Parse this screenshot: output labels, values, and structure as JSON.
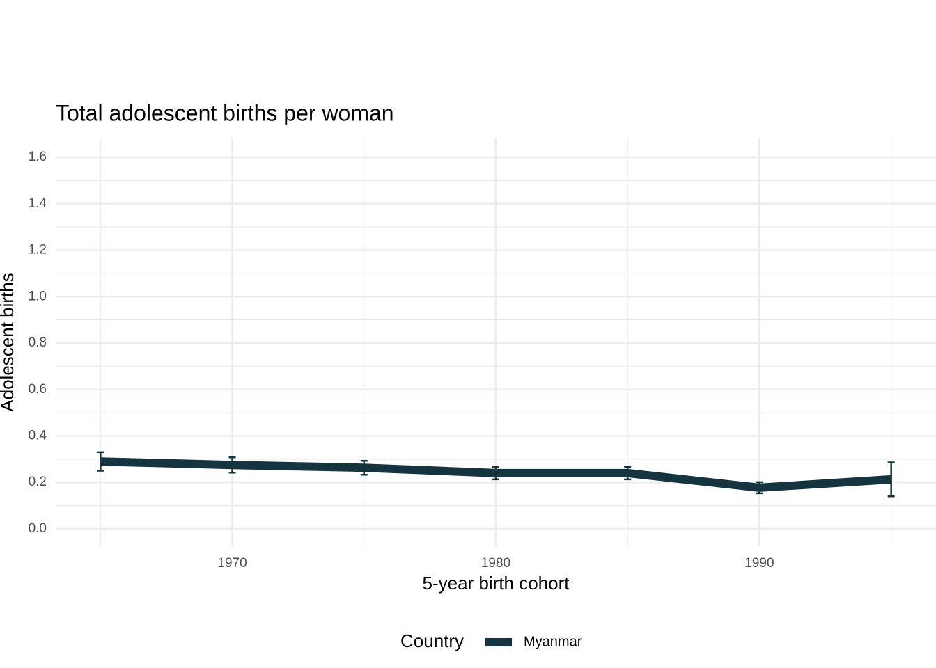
{
  "chart_data": {
    "type": "line",
    "title": "Total adolescent births per woman",
    "x_label": "5-year birth cohort",
    "y_label": "Adolescent births",
    "x": [
      1965,
      1970,
      1975,
      1980,
      1985,
      1990,
      1995
    ],
    "series": [
      {
        "name": "Myanmar",
        "color": "#15343f",
        "values": [
          0.29,
          0.275,
          0.263,
          0.24,
          0.24,
          0.177,
          0.213
        ],
        "errors": [
          0.04,
          0.033,
          0.03,
          0.027,
          0.027,
          0.024,
          0.073
        ]
      }
    ],
    "xlim": [
      1963.3,
      1996.7
    ],
    "xticks": [
      1970,
      1980,
      1990
    ],
    "x_minor_ticks": [
      1965,
      1975,
      1985,
      1995
    ],
    "ylim": [
      -0.075,
      1.684
    ],
    "yticks": [
      {
        "value": 0,
        "label": "0.0"
      },
      {
        "value": 0.2,
        "label": "0.2"
      },
      {
        "value": 0.4,
        "label": "0.4"
      },
      {
        "value": 0.6,
        "label": "0.6"
      },
      {
        "value": 0.8,
        "label": "0.8"
      },
      {
        "value": 1,
        "label": "1.0"
      },
      {
        "value": 1.2,
        "label": "1.2"
      },
      {
        "value": 1.4,
        "label": "1.4"
      },
      {
        "value": 1.6,
        "label": "1.6"
      }
    ],
    "y_minor_ticks": [
      0.1,
      0.3,
      0.5,
      0.7,
      0.9,
      1.1,
      1.3,
      1.5
    ],
    "grid": true,
    "legend_title": "Country",
    "legend_position": "bottom"
  }
}
